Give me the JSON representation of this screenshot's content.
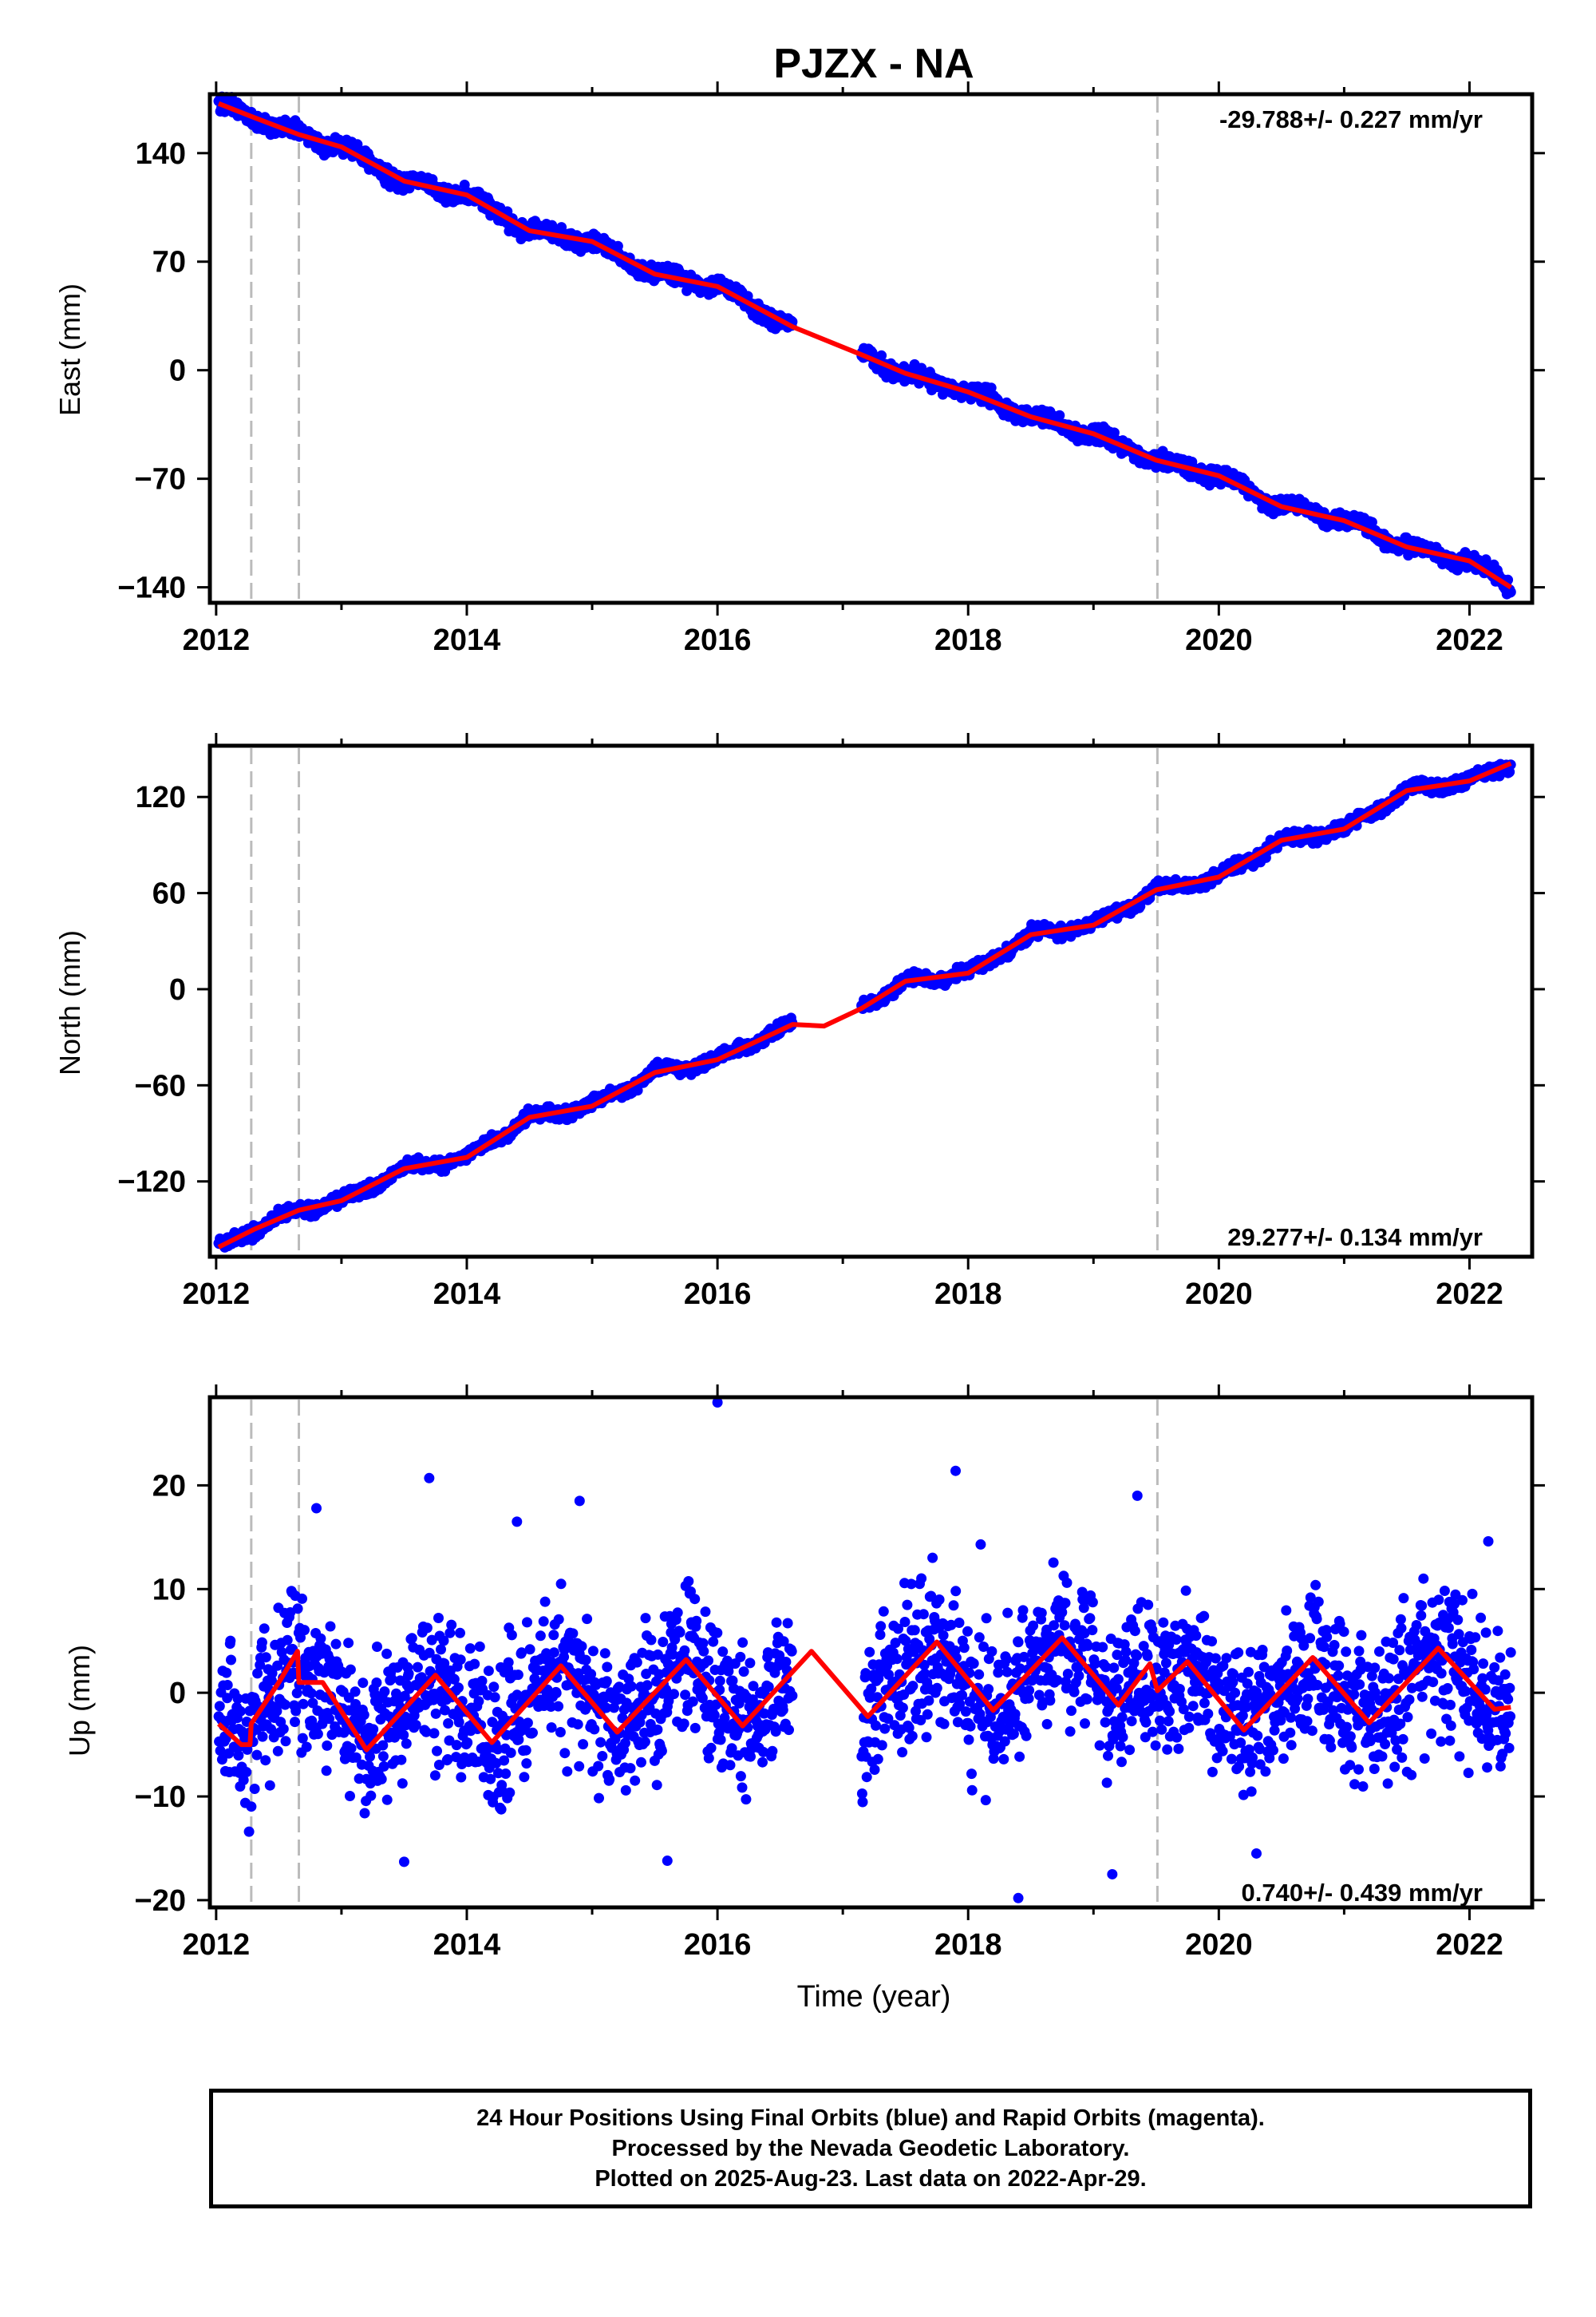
{
  "title": "PJZX - NA",
  "xlabel": "Time (year)",
  "footer": {
    "line1": "24 Hour Positions Using Final Orbits (blue) and Rapid Orbits (magenta).",
    "line2": "Processed by the Nevada Geodetic Laboratory.",
    "line3": "Plotted on 2025-Aug-23. Last data on 2022-Apr-29."
  },
  "colors": {
    "observations": "#0000ff",
    "model": "#ff0000",
    "event_lines": "#bbbbbb"
  },
  "chart_data": [
    {
      "type": "scatter",
      "ylabel": "East (mm)",
      "rate_text": "-29.788+/- 0.227 mm/yr",
      "rate_position": "top-right",
      "xlim": [
        2011.95,
        2022.5
      ],
      "ylim": [
        -150,
        178
      ],
      "x_ticks": [
        2012,
        2014,
        2016,
        2018,
        2020,
        2022
      ],
      "y_ticks": [
        140,
        70,
        0,
        -70,
        -140
      ],
      "y_tick_labels": [
        "140",
        "70",
        "0",
        "−70",
        "−140"
      ],
      "event_lines": [
        2012.28,
        2012.66,
        2019.51
      ],
      "data_gap": [
        2016.6,
        2017.15
      ],
      "model": {
        "x": [
          2012.02,
          2012.3,
          2012.66,
          2013.0,
          2013.5,
          2014.0,
          2014.5,
          2015.0,
          2015.5,
          2016.0,
          2016.6,
          2017.15,
          2017.5,
          2018.0,
          2018.5,
          2019.0,
          2019.5,
          2020.0,
          2020.5,
          2021.0,
          2021.5,
          2022.0,
          2022.33
        ],
        "y": [
          172,
          163,
          152,
          144,
          122,
          113,
          90,
          83,
          62,
          54,
          28,
          10,
          -2,
          -14,
          -30,
          -41,
          -58,
          -68,
          -88,
          -97,
          -114,
          -123,
          -140
        ]
      },
      "seasonal_amplitude": 2.5,
      "noise": 2.5
    },
    {
      "type": "scatter",
      "ylabel": "North (mm)",
      "rate_text": "29.277+/- 0.134 mm/yr",
      "rate_position": "bottom-right",
      "xlim": [
        2011.95,
        2022.5
      ],
      "ylim": [
        -167,
        152
      ],
      "x_ticks": [
        2012,
        2014,
        2016,
        2018,
        2020,
        2022
      ],
      "y_ticks": [
        120,
        60,
        0,
        -60,
        -120
      ],
      "y_tick_labels": [
        "120",
        "60",
        "0",
        "−60",
        "−120"
      ],
      "event_lines": [
        2012.28,
        2012.66,
        2019.51
      ],
      "data_gap": [
        2016.6,
        2017.15
      ],
      "model": {
        "x": [
          2012.02,
          2012.3,
          2012.66,
          2013.0,
          2013.5,
          2014.0,
          2014.5,
          2015.0,
          2015.5,
          2016.0,
          2016.6,
          2016.85,
          2017.15,
          2017.5,
          2018.0,
          2018.5,
          2019.0,
          2019.5,
          2020.0,
          2020.5,
          2021.0,
          2021.5,
          2022.0,
          2022.33
        ],
        "y": [
          -161,
          -150,
          -138,
          -132,
          -112,
          -105,
          -80,
          -73,
          -52,
          -44,
          -22,
          -23,
          -12,
          5,
          10,
          34,
          40,
          62,
          70,
          93,
          100,
          124,
          130,
          141
        ]
      },
      "seasonal_amplitude": 2.0,
      "noise": 1.8
    },
    {
      "type": "scatter",
      "ylabel": "Up (mm)",
      "rate_text": "0.740+/- 0.439 mm/yr",
      "rate_position": "bottom-right",
      "xlim": [
        2011.95,
        2022.5
      ],
      "ylim": [
        -20.7,
        28.5
      ],
      "x_ticks": [
        2012,
        2014,
        2016,
        2018,
        2020,
        2022
      ],
      "y_ticks": [
        20,
        10,
        0,
        -10,
        -20
      ],
      "y_tick_labels": [
        "20",
        "10",
        "0",
        "−10",
        "−20"
      ],
      "event_lines": [
        2012.28,
        2012.66,
        2019.51
      ],
      "data_gap": [
        2016.6,
        2017.15
      ],
      "model": {
        "x": [
          2012.02,
          2012.2,
          2012.27,
          2012.28,
          2012.5,
          2012.65,
          2012.66,
          2012.85,
          2013.2,
          2013.75,
          2014.2,
          2014.75,
          2015.2,
          2015.75,
          2016.2,
          2016.75,
          2017.2,
          2017.75,
          2018.2,
          2018.75,
          2019.2,
          2019.45,
          2019.51,
          2019.75,
          2020.2,
          2020.75,
          2021.2,
          2021.75,
          2022.2,
          2022.33
        ],
        "y": [
          -3,
          -5,
          -5,
          -3,
          1,
          4,
          1,
          1,
          -5.5,
          1.7,
          -4.8,
          2.6,
          -3.8,
          3.2,
          -3.2,
          4.0,
          -2.3,
          4.9,
          -1.7,
          5.3,
          -1.2,
          2.8,
          0.2,
          3.0,
          -3.6,
          3.4,
          -2.9,
          4.3,
          -1.6,
          -1.4
        ]
      },
      "seasonal_amplitude": 4.0,
      "noise": 3.5,
      "outliers": [
        [
          2016.0,
          28.0
        ],
        [
          2017.9,
          21.4
        ],
        [
          2013.7,
          20.7
        ],
        [
          2019.35,
          19.0
        ],
        [
          2014.9,
          18.5
        ],
        [
          2012.8,
          17.8
        ],
        [
          2014.4,
          16.5
        ],
        [
          2018.4,
          -19.8
        ],
        [
          2019.15,
          -17.5
        ],
        [
          2015.6,
          -16.2
        ],
        [
          2013.5,
          -16.3
        ],
        [
          2020.3,
          -15.5
        ],
        [
          2018.1,
          14.3
        ],
        [
          2022.15,
          14.6
        ]
      ]
    }
  ]
}
